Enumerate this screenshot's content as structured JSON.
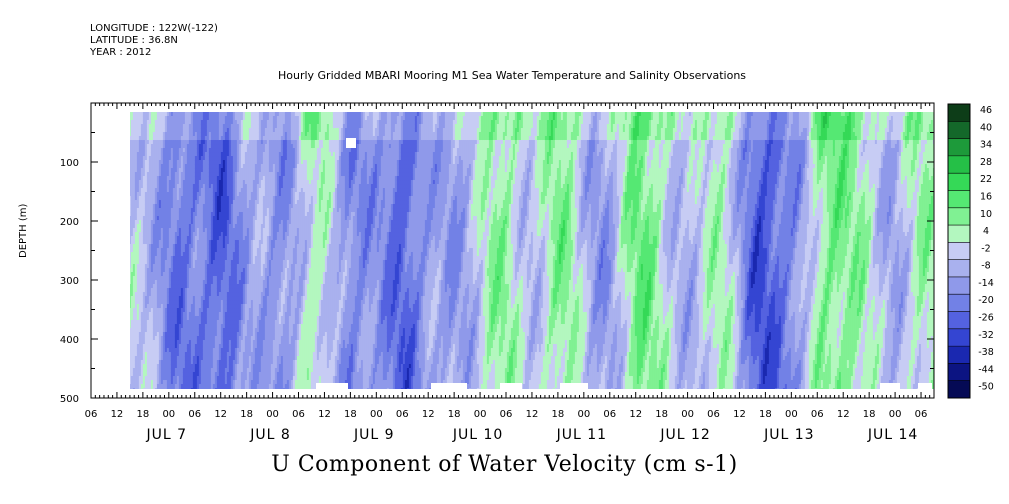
{
  "header": {
    "longitude": "LONGITUDE : 122W(-122)",
    "latitude": "LATITUDE : 36.8N",
    "year": "YEAR : 2012"
  },
  "chart_data": {
    "type": "heatmap",
    "title": "Hourly Gridded MBARI Mooring M1 Sea Water Temperature and Salinity Observations",
    "variable_label": "U Component of Water Velocity (cm s-1)",
    "ylabel": "DEPTH (m)",
    "ylim": [
      500,
      10
    ],
    "y_inverted": true,
    "y_ticks": [
      100,
      200,
      300,
      400,
      500
    ],
    "x_range_hours": [
      "2012-07-06 06:00",
      "2012-07-14 09:00"
    ],
    "x_hour_tick_labels": [
      "06",
      "12",
      "18",
      "00",
      "06",
      "12",
      "18",
      "00",
      "06",
      "12",
      "18",
      "00",
      "06",
      "12",
      "18",
      "00",
      "06",
      "12",
      "18",
      "00",
      "06",
      "12",
      "18",
      "00",
      "06",
      "12",
      "18",
      "00",
      "06",
      "12",
      "18",
      "00",
      "06"
    ],
    "x_day_labels": [
      "JUL  7",
      "JUL  8",
      "JUL  9",
      "JUL 10",
      "JUL 11",
      "JUL 12",
      "JUL 13",
      "JUL 14"
    ],
    "data_x_start": "2012-07-06 12:00",
    "colorbar_levels": [
      "46",
      "40",
      "34",
      "28",
      "22",
      "16",
      "10",
      "4",
      "-2",
      "-8",
      "-14",
      "-20",
      "-26",
      "-32",
      "-38",
      "-44",
      "-50"
    ],
    "colorbar_min": -50,
    "colorbar_max": 52,
    "colorbar_step": 6
  }
}
